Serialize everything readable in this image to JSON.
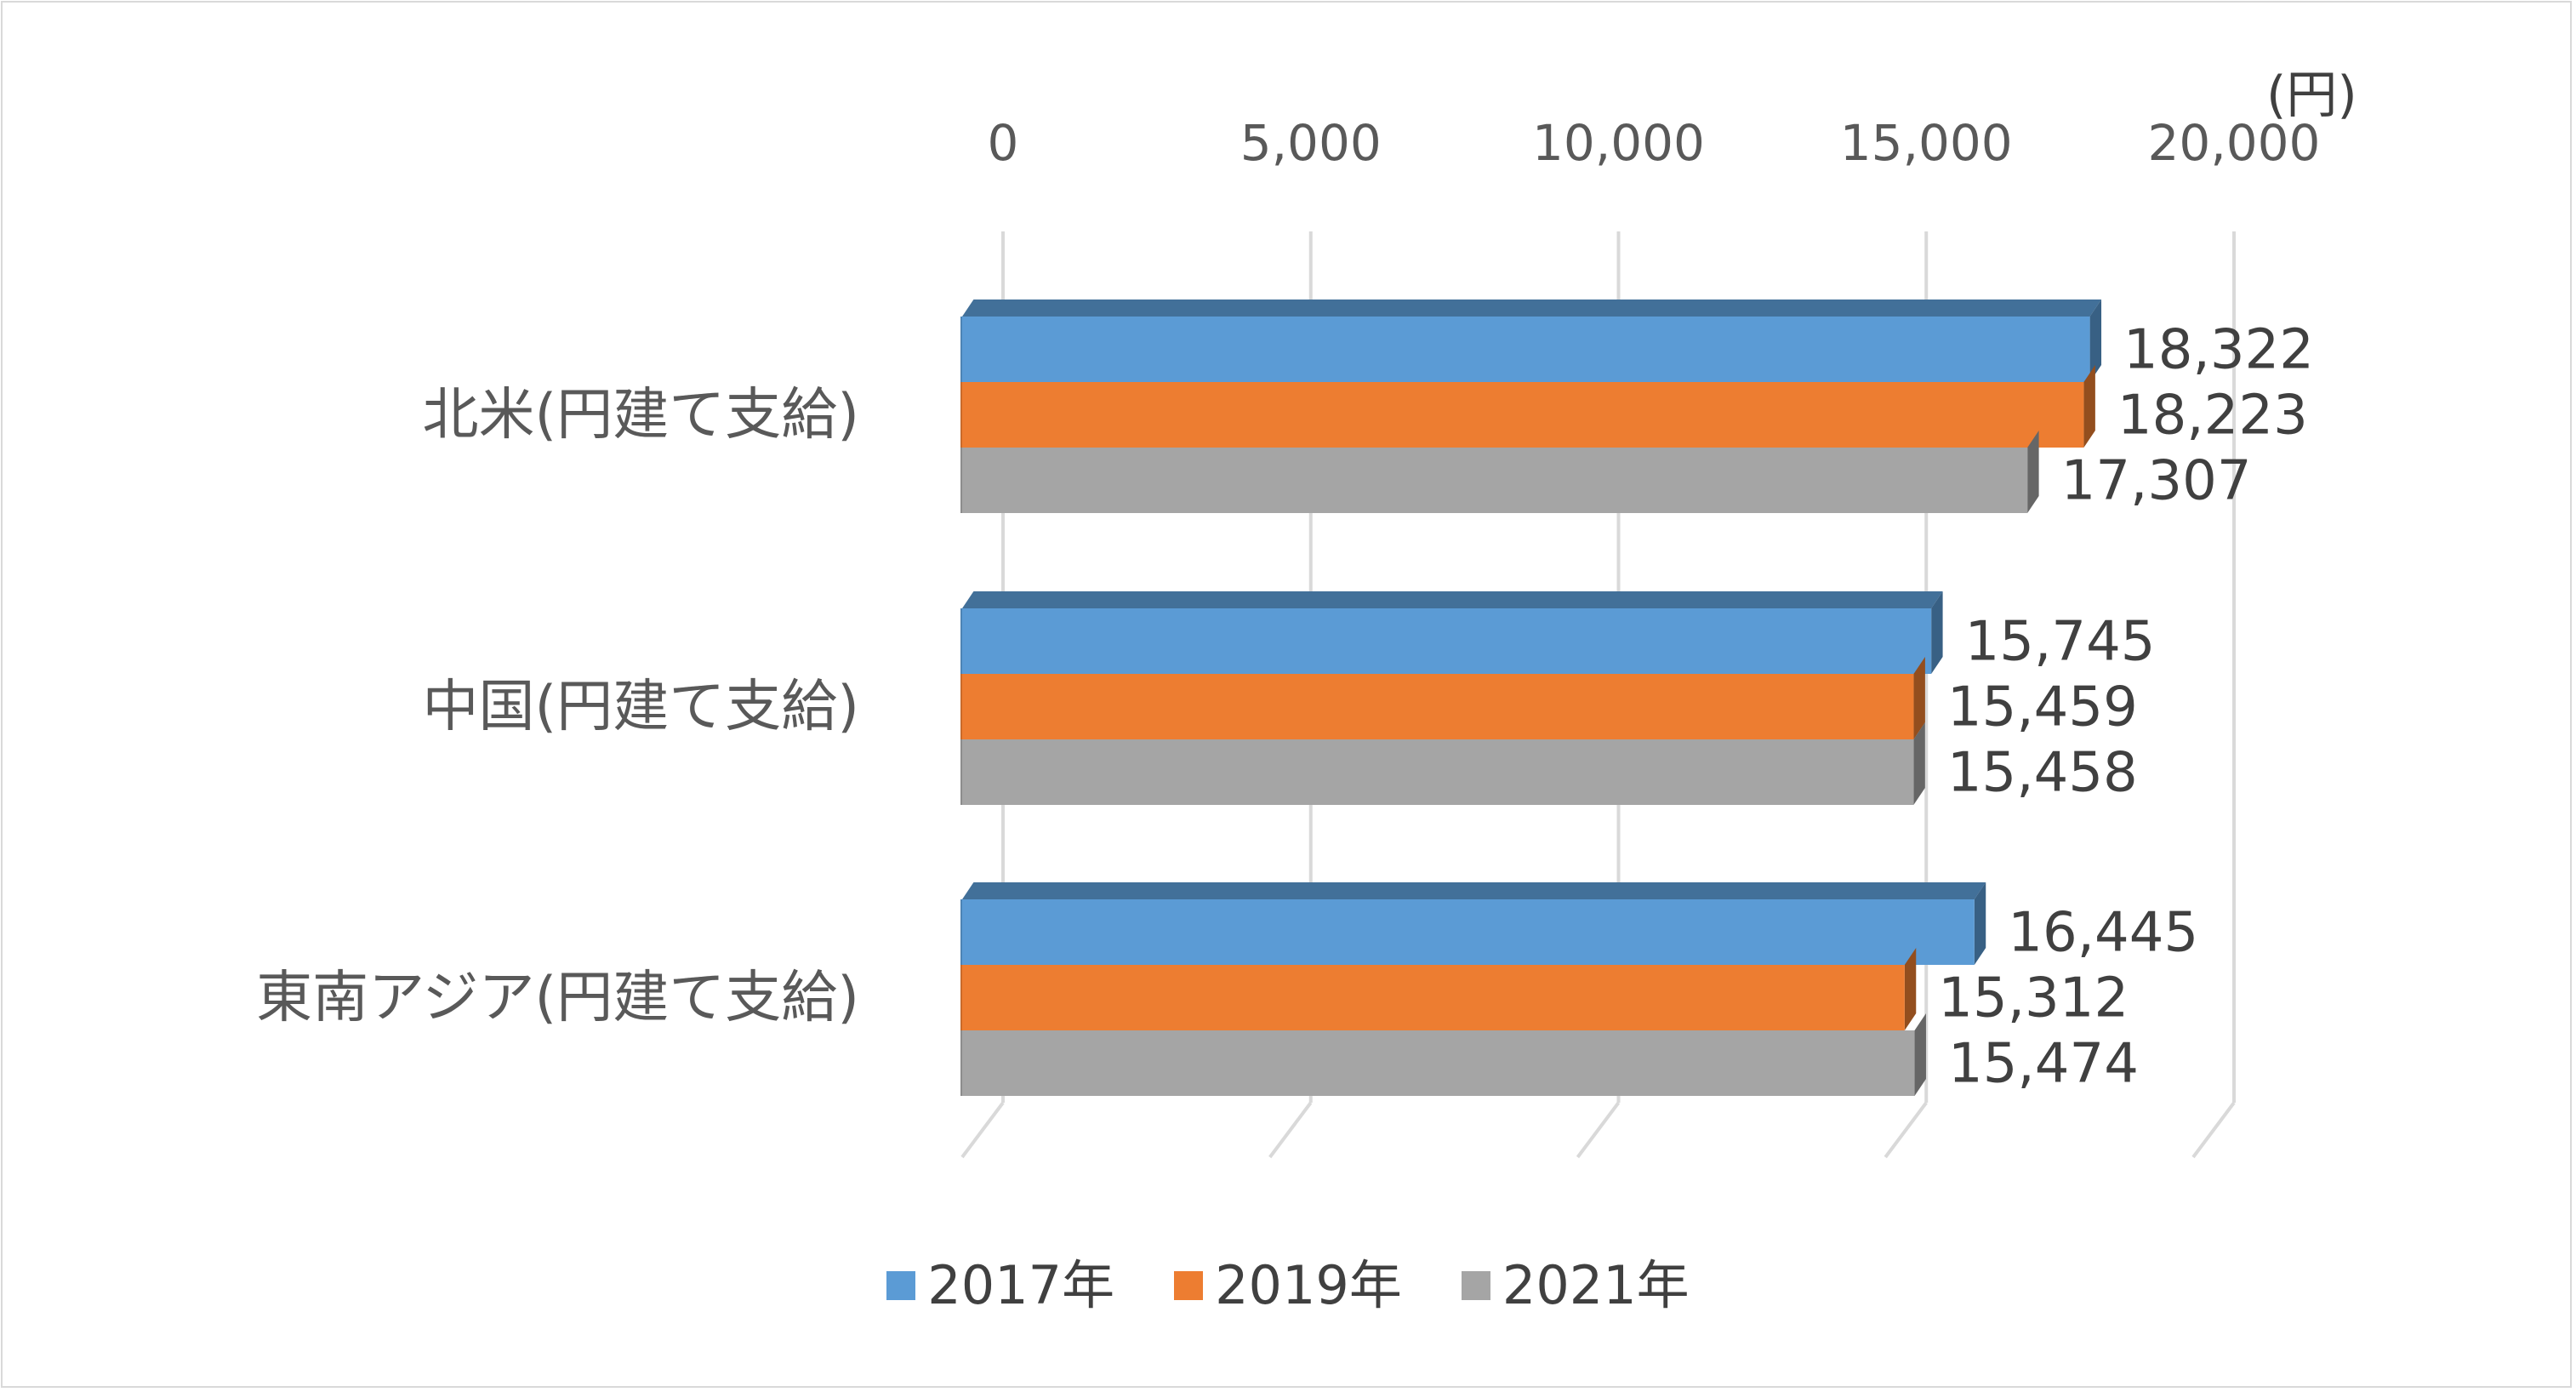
{
  "chart_data": {
    "type": "bar",
    "orientation": "horizontal",
    "unit_label": "(円)",
    "categories": [
      "北米(円建て支給)",
      "中国(円建て支給)",
      "東南アジア(円建て支給)"
    ],
    "series": [
      {
        "name": "2017年",
        "color": "#5b9bd5",
        "values": [
          18322,
          15745,
          16445
        ],
        "labels": [
          "18,322",
          "15,745",
          "16,445"
        ]
      },
      {
        "name": "2019年",
        "color": "#ed7d31",
        "values": [
          18223,
          15459,
          15312
        ],
        "labels": [
          "18,223",
          "15,459",
          "15,312"
        ]
      },
      {
        "name": "2021年",
        "color": "#a5a5a5",
        "values": [
          17307,
          15458,
          15474
        ],
        "labels": [
          "17,307",
          "15,458",
          "15,474"
        ]
      }
    ],
    "xlim": [
      0,
      20000
    ],
    "xticks": [
      "0",
      "5,000",
      "10,000",
      "15,000",
      "20,000"
    ],
    "axis_position": "top",
    "grid": true,
    "legend": "bottom",
    "style": "3d"
  }
}
